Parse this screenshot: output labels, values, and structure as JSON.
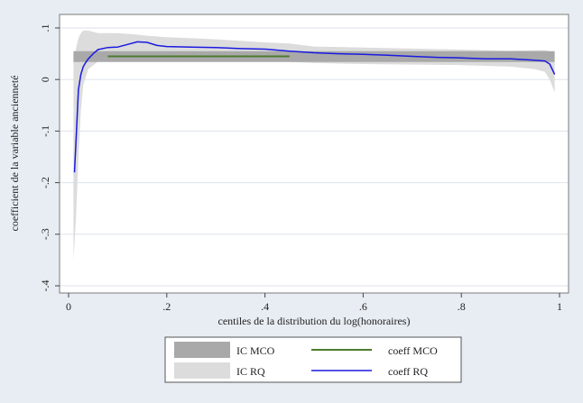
{
  "chart_data": {
    "type": "area",
    "xlabel": "centiles de la distribution du log(honoraires)",
    "ylabel": "coefficient de la variable ancienneté",
    "xlim": [
      0,
      1
    ],
    "ylim": [
      -0.4,
      0.1
    ],
    "x_ticks": [
      {
        "value": 0,
        "label": "0"
      },
      {
        "value": 0.2,
        "label": ".2"
      },
      {
        "value": 0.4,
        "label": ".4"
      },
      {
        "value": 0.6,
        "label": ".6"
      },
      {
        "value": 0.8,
        "label": ".8"
      },
      {
        "value": 1,
        "label": "1"
      }
    ],
    "y_ticks": [
      {
        "value": -0.4,
        "label": "-.4"
      },
      {
        "value": -0.3,
        "label": "-.3"
      },
      {
        "value": -0.2,
        "label": "-.2"
      },
      {
        "value": -0.1,
        "label": "-.1"
      },
      {
        "value": 0,
        "label": "0"
      },
      {
        "value": 0.1,
        "label": ".1"
      }
    ],
    "grid": true,
    "legend_position": "bottom",
    "colors": {
      "ic_mco": "#a9a9a9",
      "ic_rq": "#dcdcdc",
      "coeff_mco": "#4e7a2d",
      "coeff_rq": "#1a1ae0"
    },
    "series": [
      {
        "name": "IC MCO",
        "kind": "band",
        "color": "#a9a9a9",
        "x": [
          0.01,
          0.1,
          0.3,
          0.45,
          0.6,
          0.8,
          0.99
        ],
        "lower": [
          0.034,
          0.034,
          0.034,
          0.034,
          0.034,
          0.034,
          0.034
        ],
        "upper": [
          0.055,
          0.055,
          0.055,
          0.055,
          0.055,
          0.055,
          0.055
        ]
      },
      {
        "name": "IC RQ",
        "kind": "band",
        "color": "#dcdcdc",
        "x": [
          0.01,
          0.015,
          0.02,
          0.025,
          0.03,
          0.04,
          0.06,
          0.08,
          0.1,
          0.13,
          0.16,
          0.2,
          0.25,
          0.3,
          0.35,
          0.4,
          0.45,
          0.5,
          0.6,
          0.7,
          0.8,
          0.9,
          0.95,
          0.97,
          0.98,
          0.99
        ],
        "lower": [
          -0.35,
          -0.27,
          -0.15,
          -0.06,
          -0.01,
          0.02,
          0.035,
          0.04,
          0.045,
          0.05,
          0.052,
          0.05,
          0.045,
          0.042,
          0.04,
          0.037,
          0.034,
          0.032,
          0.03,
          0.029,
          0.028,
          0.025,
          0.02,
          0.015,
          0.0,
          -0.025
        ],
        "upper": [
          0.035,
          0.06,
          0.08,
          0.09,
          0.095,
          0.095,
          0.09,
          0.09,
          0.09,
          0.088,
          0.085,
          0.082,
          0.08,
          0.078,
          0.075,
          0.072,
          0.07,
          0.064,
          0.062,
          0.06,
          0.058,
          0.056,
          0.057,
          0.057,
          0.055,
          0.05
        ]
      },
      {
        "name": "coeff MCO",
        "kind": "line",
        "color": "#4e7a2d",
        "x": [
          0.08,
          0.45
        ],
        "y": [
          0.045,
          0.045
        ]
      },
      {
        "name": "coeff RQ",
        "kind": "line",
        "color": "#1a1ae0",
        "x": [
          0.012,
          0.015,
          0.02,
          0.025,
          0.03,
          0.035,
          0.04,
          0.05,
          0.06,
          0.08,
          0.1,
          0.12,
          0.14,
          0.16,
          0.18,
          0.2,
          0.25,
          0.3,
          0.35,
          0.4,
          0.45,
          0.5,
          0.55,
          0.6,
          0.65,
          0.7,
          0.75,
          0.8,
          0.85,
          0.9,
          0.94,
          0.97,
          0.98,
          0.99
        ],
        "y": [
          -0.18,
          -0.12,
          -0.02,
          0.01,
          0.025,
          0.033,
          0.04,
          0.05,
          0.058,
          0.062,
          0.063,
          0.068,
          0.073,
          0.072,
          0.066,
          0.064,
          0.063,
          0.062,
          0.06,
          0.059,
          0.055,
          0.052,
          0.05,
          0.049,
          0.047,
          0.045,
          0.043,
          0.042,
          0.04,
          0.04,
          0.038,
          0.036,
          0.03,
          0.01
        ]
      }
    ]
  }
}
